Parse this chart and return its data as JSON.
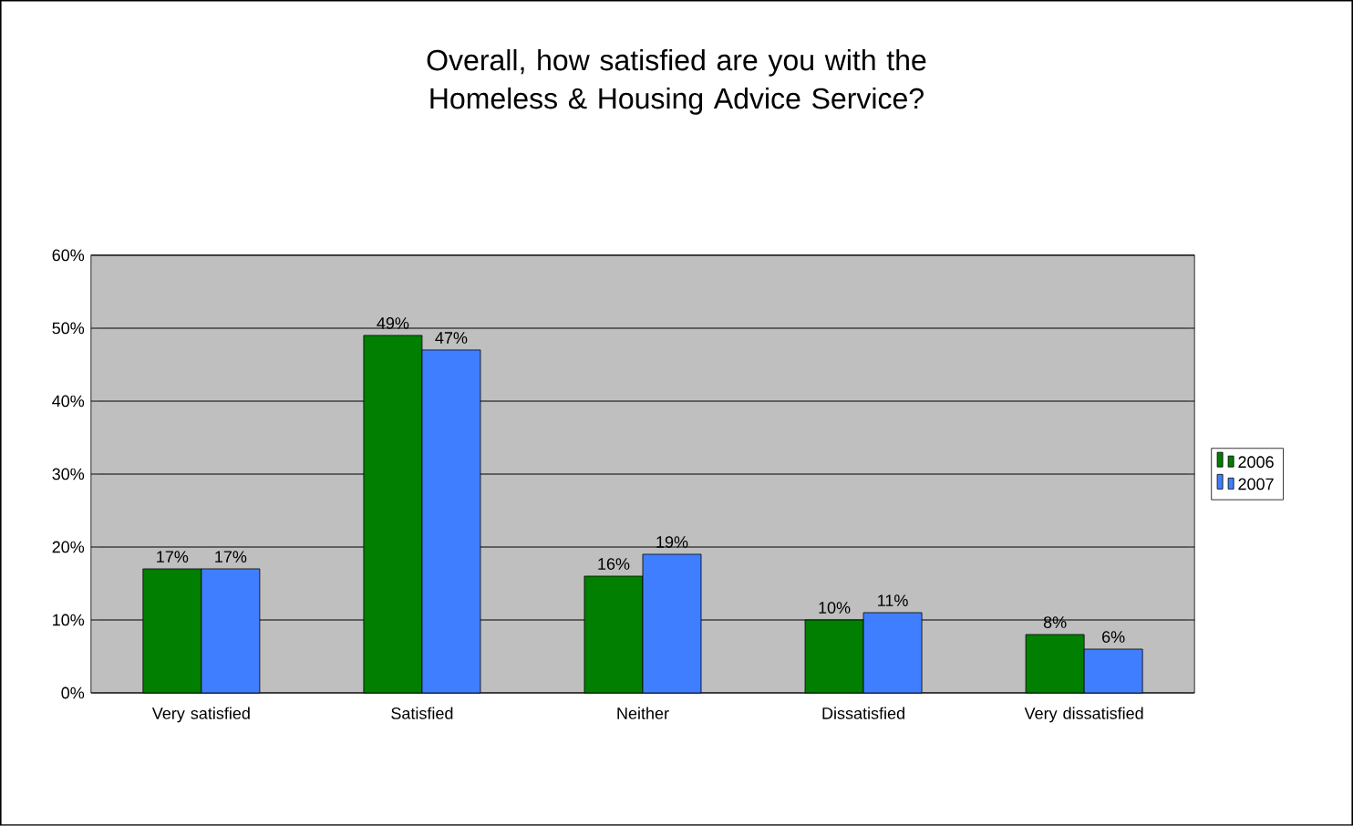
{
  "chart_data": {
    "type": "bar",
    "title": "Overall, how satisfied are you with the Homeless & Housing Advice Service?",
    "categories": [
      "Very satisfied",
      "Satisfied",
      "Neither",
      "Dissatisfied",
      "Very dissatisfied"
    ],
    "series": [
      {
        "name": "2006",
        "color": "#007f00",
        "values": [
          17,
          49,
          16,
          10,
          8
        ],
        "value_labels": [
          "17%",
          "49%",
          "16%",
          "10%",
          "8%"
        ]
      },
      {
        "name": "2007",
        "color": "#3f7fff",
        "values": [
          17,
          47,
          19,
          11,
          6
        ],
        "value_labels": [
          "17%",
          "47%",
          "19%",
          "11%",
          "6%"
        ]
      }
    ],
    "ylim": [
      0,
      60
    ],
    "yticks": [
      {
        "value": 0,
        "label": "0%"
      },
      {
        "value": 10,
        "label": "10%"
      },
      {
        "value": 20,
        "label": "20%"
      },
      {
        "value": 30,
        "label": "30%"
      },
      {
        "value": 40,
        "label": "40%"
      },
      {
        "value": 50,
        "label": "50%"
      },
      {
        "value": 60,
        "label": "60%"
      }
    ],
    "grid": "y",
    "legend": "right"
  }
}
